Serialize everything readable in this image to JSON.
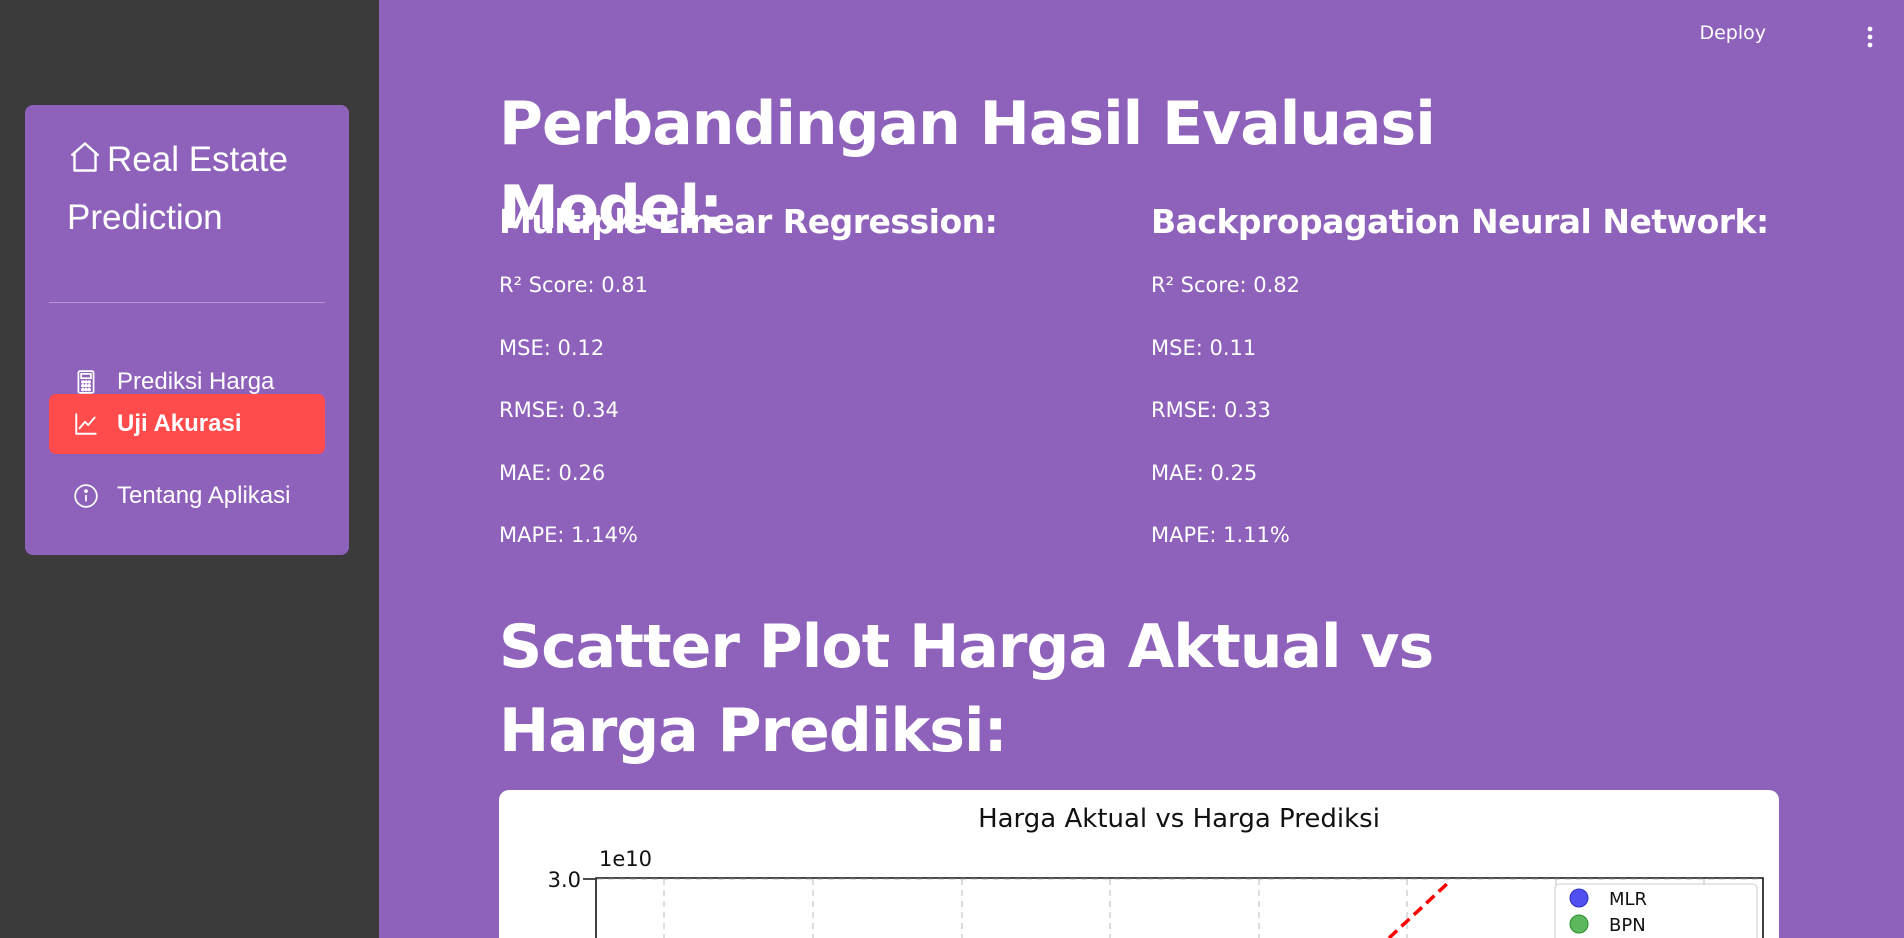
{
  "app": {
    "brand": "Real Estate Prediction",
    "nav": [
      {
        "label": "Prediksi Harga",
        "icon": "calculator-icon",
        "active": false
      },
      {
        "label": "Uji Akurasi",
        "icon": "line-chart-icon",
        "active": true
      },
      {
        "label": "Tentang Aplikasi",
        "icon": "info-icon",
        "active": false
      }
    ],
    "topbar": {
      "deploy_label": "Deploy",
      "menu_icon": "more-vertical-icon"
    },
    "colors": {
      "background": "#8e61bb",
      "sidebar": "#3c3b3b",
      "active": "#ff4b4b"
    }
  },
  "main": {
    "title": "Perbandingan Hasil Evaluasi Model:",
    "mlr": {
      "heading": "Multiple Linear Regression:",
      "metrics": [
        "R² Score: 0.81",
        "MSE: 0.12",
        "RMSE: 0.34",
        "MAE: 0.26",
        "MAPE: 1.14%"
      ]
    },
    "bpn": {
      "heading": "Backpropagation Neural Network:",
      "metrics": [
        "R² Score: 0.82",
        "MSE: 0.11",
        "RMSE: 0.33",
        "MAE: 0.25",
        "MAPE: 1.11%"
      ]
    },
    "scatter_title": "Scatter Plot Harga Aktual vs Harga Prediksi:"
  },
  "chart_data": {
    "type": "scatter",
    "title": "Harga Aktual vs Harga Prediksi",
    "offset_label": "1e10",
    "y_ticks": [
      "3.0"
    ],
    "legend": [
      "MLR",
      "BPN"
    ],
    "legend_position": "top-right",
    "series": [
      {
        "name": "MLR",
        "color": "#3b3bf0",
        "values": []
      },
      {
        "name": "BPN",
        "color": "#2ca02c",
        "values": []
      }
    ],
    "reference_line_color": "#ff0000",
    "grid": true
  }
}
